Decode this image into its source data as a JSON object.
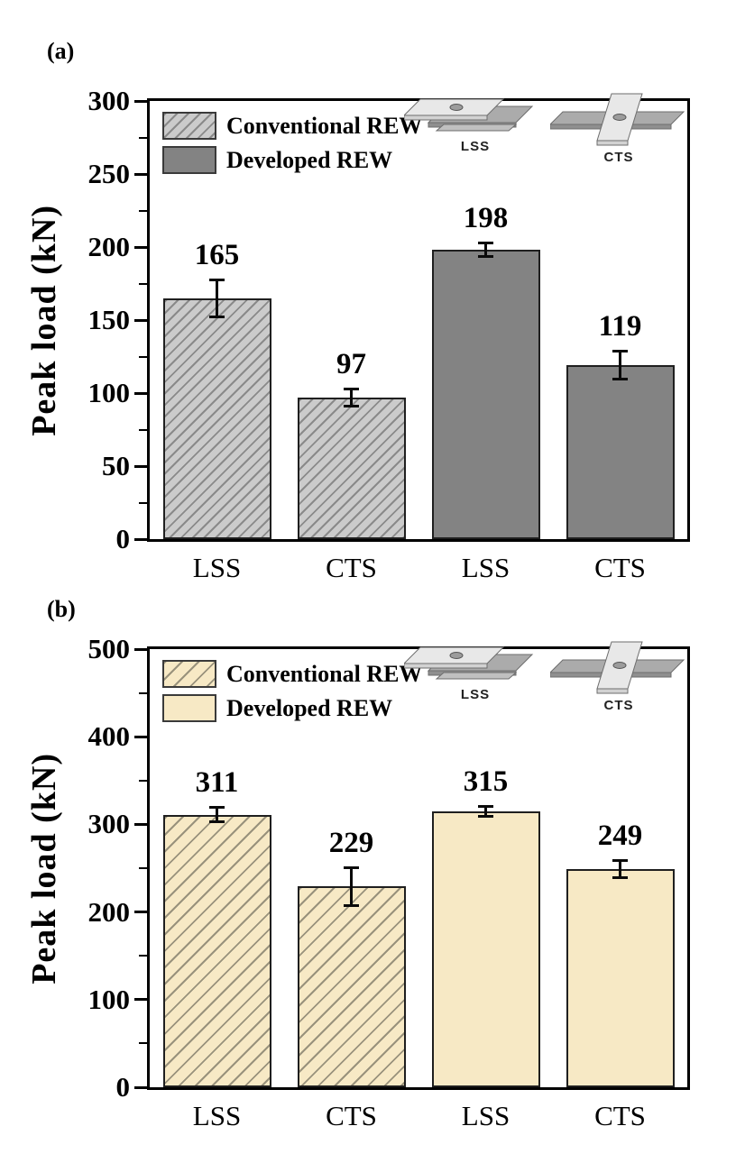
{
  "figure": {
    "panel_a_tag": "(a)",
    "panel_b_tag": "(b)"
  },
  "chart_data": [
    {
      "type": "bar",
      "panel_tag": "(a)",
      "title": "",
      "xlabel": "",
      "ylabel": "Peak load (kN)",
      "ylim": [
        0,
        300
      ],
      "yticks_major": [
        0,
        50,
        100,
        150,
        200,
        250,
        300
      ],
      "yticks_minor": [
        25,
        75,
        125,
        175,
        225,
        275
      ],
      "grid": false,
      "legend_position": "top-left",
      "categories": [
        "LSS",
        "CTS",
        "LSS",
        "CTS"
      ],
      "series": [
        {
          "name": "Conventional REW",
          "pattern": "hatched",
          "values": [
            165,
            97
          ],
          "errors": [
            13,
            6
          ]
        },
        {
          "name": "Developed REW",
          "pattern": "solid",
          "values": [
            198,
            119
          ],
          "errors": [
            5,
            10
          ]
        }
      ],
      "inset_labels": [
        "LSS",
        "CTS"
      ],
      "colors": {
        "bar_fill": "#cbcbcb",
        "hatch_line": "#8a8a8a",
        "solid_fill": "#838383",
        "edge": "#1f1f1f",
        "hatch_period": 9
      }
    },
    {
      "type": "bar",
      "panel_tag": "(b)",
      "title": "",
      "xlabel": "",
      "ylabel": "Peak load (kN)",
      "ylim": [
        0,
        500
      ],
      "yticks_major": [
        0,
        100,
        200,
        300,
        400,
        500
      ],
      "yticks_minor": [
        50,
        150,
        250,
        350,
        450
      ],
      "grid": false,
      "legend_position": "top-left",
      "categories": [
        "LSS",
        "CTS",
        "LSS",
        "CTS"
      ],
      "series": [
        {
          "name": "Conventional REW",
          "pattern": "hatched",
          "values": [
            311,
            229
          ],
          "errors": [
            9,
            22
          ]
        },
        {
          "name": "Developed REW",
          "pattern": "solid",
          "values": [
            315,
            249
          ],
          "errors": [
            6,
            10
          ]
        }
      ],
      "inset_labels": [
        "LSS",
        "CTS"
      ],
      "colors": {
        "bar_fill": "#f7e9c5",
        "hatch_line": "#99927c",
        "solid_fill": "#f7e9c5",
        "edge": "#1f1f1f",
        "hatch_period": 13
      }
    }
  ]
}
